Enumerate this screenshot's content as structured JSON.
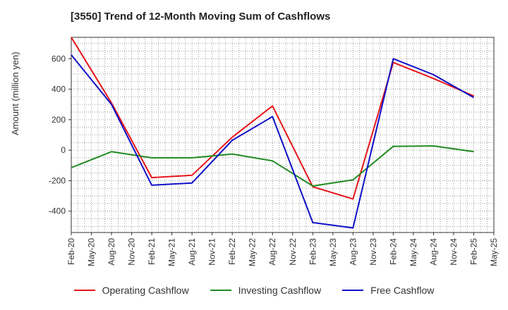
{
  "title": "[3550]  Trend of 12-Month Moving Sum of Cashflows",
  "chart_data": {
    "type": "line",
    "title": "[3550]  Trend of 12-Month Moving Sum of Cashflows",
    "xlabel": "",
    "ylabel": "Amount (million yen)",
    "x": [
      "Feb-20",
      "May-20",
      "Aug-20",
      "Nov-20",
      "Feb-21",
      "May-21",
      "Aug-21",
      "Nov-21",
      "Feb-22",
      "May-22",
      "Aug-22",
      "Nov-22",
      "Feb-23",
      "May-23",
      "Aug-23",
      "Nov-23",
      "Feb-24",
      "May-24",
      "Aug-24",
      "Nov-24",
      "Feb-25",
      "May-25"
    ],
    "ylim": [
      -540,
      740
    ],
    "yticks": [
      -400,
      -200,
      0,
      200,
      400,
      600
    ],
    "ytick_labels": [
      "-400",
      "-200",
      "0",
      "200",
      "400",
      "600"
    ],
    "grid": true,
    "legend_position": "bottom",
    "series": [
      {
        "name": "Operating Cashflow",
        "color": "#e8141a",
        "values": [
          740,
          null,
          310,
          null,
          -180,
          null,
          -165,
          null,
          85,
          null,
          290,
          null,
          -240,
          null,
          -320,
          null,
          575,
          null,
          470,
          null,
          355,
          null
        ]
      },
      {
        "name": "Investing Cashflow",
        "color": "#228b22",
        "values": [
          -115,
          null,
          -10,
          null,
          -50,
          null,
          -50,
          null,
          -25,
          null,
          -70,
          null,
          -235,
          null,
          -195,
          null,
          25,
          null,
          28,
          null,
          -10,
          null
        ]
      },
      {
        "name": "Free Cashflow",
        "color": "#1010c8",
        "values": [
          625,
          null,
          300,
          null,
          -230,
          null,
          -215,
          null,
          65,
          null,
          220,
          null,
          -475,
          null,
          -510,
          null,
          600,
          null,
          495,
          null,
          345,
          null
        ]
      }
    ]
  }
}
